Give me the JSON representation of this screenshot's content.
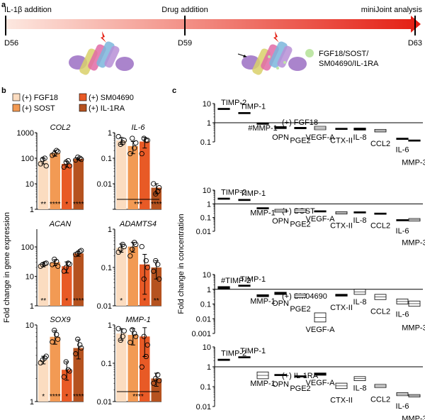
{
  "colors": {
    "fgf18": "#fbdcc0",
    "sost": "#f29a54",
    "sm04690": "#e85a26",
    "il1ra": "#b5521f",
    "timeline_start": "#fde8e0",
    "timeline_end": "#e41e12",
    "drug_dot": "#bfe6a6"
  },
  "timeline": {
    "panel_label": "a",
    "events": [
      {
        "top": "IL-1β addition",
        "bottom": "D56"
      },
      {
        "top": "Drug addition",
        "bottom": "D59"
      },
      {
        "top": "miniJoint analysis",
        "bottom": "D63"
      }
    ],
    "drug_label_lines": [
      "FGF18/SOST/",
      "SM04690/IL-1RA"
    ]
  },
  "panel_b": {
    "panel_label": "b",
    "legend": [
      "(+) FGF18",
      "(+) SOST",
      "(+) SM04690",
      "(+) IL-1RA"
    ],
    "ylabel": "Fold change in gene expression"
  },
  "panel_c": {
    "panel_label": "c",
    "ylabel": "Fold change in concentration"
  },
  "chart_data": [
    {
      "type": "bar",
      "title": "COL2",
      "categories": [
        "(+) FGF18",
        "(+) SOST",
        "(+) SM04690",
        "(+) IL-1RA"
      ],
      "values": [
        80,
        160,
        60,
        95
      ],
      "errors": [
        20,
        40,
        15,
        10
      ],
      "points": [
        [
          60,
          100,
          90,
          50
        ],
        [
          130,
          200,
          150,
          180
        ],
        [
          45,
          80,
          70,
          50
        ],
        [
          85,
          100,
          110,
          90
        ]
      ],
      "significance": [
        "**",
        "****",
        "*",
        "****"
      ],
      "ylim": [
        1,
        1000
      ],
      "log": true,
      "ticks": [
        1,
        10,
        100,
        1000
      ],
      "tick_labels": [
        "1",
        "10",
        "100",
        "1000"
      ]
    },
    {
      "type": "bar",
      "title": "IL-6",
      "categories": [
        "(+) FGF18",
        "(+) SOST",
        "(+) SM04690",
        "(+) IL-1RA"
      ],
      "values": [
        0.5,
        0.3,
        0.45,
        0.007
      ],
      "errors": [
        0.15,
        0.15,
        0.2,
        0.003
      ],
      "points": [
        [
          0.7,
          0.4,
          0.35,
          0.5
        ],
        [
          0.15,
          0.25,
          0.6,
          0.4
        ],
        [
          0.15,
          0.5,
          0.6,
          0.5
        ],
        [
          0.01,
          0.005,
          0.004,
          0.007
        ]
      ],
      "significance": [
        "",
        "",
        "",
        "****"
      ],
      "bracket": "***",
      "ylim": [
        0.001,
        1
      ],
      "log": true,
      "ticks": [
        0.001,
        0.01,
        0.1,
        1
      ],
      "tick_labels": [
        "",
        "0.01",
        "0.1",
        "1"
      ]
    },
    {
      "type": "bar",
      "title": "ACAN",
      "categories": [
        "(+) FGF18",
        "(+) SOST",
        "(+) SM04690",
        "(+) IL-1RA"
      ],
      "values": [
        25,
        30,
        22,
        60
      ],
      "errors": [
        4,
        7,
        9,
        12
      ],
      "points": [
        [
          22,
          27,
          25,
          28
        ],
        [
          25,
          32,
          38,
          22
        ],
        [
          15,
          28,
          20,
          26
        ],
        [
          55,
          70,
          60,
          75
        ]
      ],
      "significance": [
        "**",
        "",
        "*",
        "****"
      ],
      "ylim": [
        1,
        400
      ],
      "log": true,
      "ticks": [
        1,
        10,
        100
      ],
      "tick_labels": [
        "1",
        "10",
        "100"
      ]
    },
    {
      "type": "bar",
      "title": "ADAMTS4",
      "categories": [
        "(+) FGF18",
        "(+) SOST",
        "(+) SM04690",
        "(+) IL-1RA"
      ],
      "values": [
        0.33,
        0.35,
        0.12,
        0.1
      ],
      "errors": [
        0.08,
        0.1,
        0.1,
        0.05
      ],
      "points": [
        [
          0.25,
          0.4,
          0.3,
          0.35
        ],
        [
          0.2,
          0.45,
          0.3,
          0.4
        ],
        [
          0.35,
          0.15,
          0.05,
          0.1
        ],
        [
          0.08,
          0.12,
          0.15,
          0.05
        ]
      ],
      "significance": [
        "*",
        "",
        "*",
        "**"
      ],
      "ylim": [
        0.01,
        1
      ],
      "log": true,
      "ticks": [
        0.01,
        0.1,
        1
      ],
      "tick_labels": [
        "0.01",
        "0.1",
        "1"
      ]
    },
    {
      "type": "bar",
      "title": "SOX9",
      "categories": [
        "(+) FGF18",
        "(+) SOST",
        "(+) SM04690",
        "(+) IL-1RA"
      ],
      "values": [
        3.5,
        7,
        2.6,
        5
      ],
      "errors": [
        0.4,
        1.4,
        0.7,
        1.4
      ],
      "points": [
        [
          3.2,
          3.7,
          3.5,
          3.9
        ],
        [
          6,
          7.5,
          8.5,
          6.5
        ],
        [
          2.1,
          2.6,
          3.3,
          2.5
        ],
        [
          4.2,
          5.5,
          6.5,
          5
        ]
      ],
      "significance": [
        "*",
        "****",
        "*",
        "****"
      ],
      "ylim": [
        1,
        10
      ],
      "log": true,
      "ticks": [
        1,
        10
      ],
      "tick_labels": [
        "1",
        "10"
      ]
    },
    {
      "type": "bar",
      "title": "MMP-1",
      "categories": [
        "(+) FGF18",
        "(+) SOST",
        "(+) SM04690",
        "(+) IL-1RA"
      ],
      "values": [
        0.6,
        0.55,
        0.5,
        0.04
      ],
      "errors": [
        0.2,
        0.25,
        0.35,
        0.015
      ],
      "points": [
        [
          0.8,
          0.5,
          0.4,
          0.7
        ],
        [
          0.35,
          0.6,
          0.75,
          0.5
        ],
        [
          0.08,
          0.15,
          0.5,
          0.3
        ],
        [
          0.03,
          0.05,
          0.04,
          0.035
        ]
      ],
      "significance": [
        "",
        "",
        "",
        ""
      ],
      "bracket": "****",
      "ylim": [
        0.01,
        1
      ],
      "log": true,
      "ticks": [
        0.01,
        0.1,
        1
      ],
      "tick_labels": [
        "0.01",
        "0.1",
        "1"
      ]
    },
    {
      "type": "box",
      "title": "(+) FGF18",
      "categories": [
        "TIMP-2",
        "TIMP-1",
        "MMP-1",
        "OPN",
        "PGE2",
        "VEGF-A",
        "CTX-II",
        "IL-8",
        "CCL2",
        "IL-6",
        "MMP-3"
      ],
      "category_display": [
        "TIMP-2",
        "TIMP-1",
        "#MMP-1",
        "OPN",
        "PGE2",
        "VEGF-A",
        "CTX-II",
        "IL-8",
        "CCL2",
        "IL-6",
        "MMP-3"
      ],
      "low": [
        5.2,
        3.1,
        0.9,
        0.5,
        0.49,
        0.43,
        0.49,
        0.42,
        0.33,
        0.135,
        0.115
      ],
      "high": [
        5.6,
        3.4,
        0.95,
        0.62,
        0.57,
        0.65,
        0.51,
        0.52,
        0.45,
        0.155,
        0.125
      ],
      "ylim": [
        0.1,
        10
      ],
      "log": true,
      "ticks": [
        0.1,
        1,
        10
      ],
      "tick_labels": [
        "0.1",
        "1",
        "10"
      ]
    },
    {
      "type": "box",
      "title": "(+) SOST",
      "categories": [
        "TIMP-2",
        "TIMP-1",
        "MMP-1",
        "OPN",
        "PGE2",
        "VEGF-A",
        "CTX-II",
        "IL-8",
        "CCL2",
        "IL-6",
        "MMP-3"
      ],
      "category_display": [
        "TIMP-2",
        "TIMP-1",
        "MMP-1",
        "OPN",
        "PGE2",
        "VEGF-A",
        "CTX-II",
        "IL-8",
        "CCL2",
        "IL-6",
        "MMP-3"
      ],
      "low": [
        2.3,
        1.8,
        0.48,
        0.25,
        0.24,
        0.28,
        0.18,
        0.22,
        0.19,
        0.06,
        0.055
      ],
      "high": [
        2.6,
        2.1,
        0.52,
        0.4,
        0.42,
        0.31,
        0.27,
        0.26,
        0.21,
        0.07,
        0.085
      ],
      "ylim": [
        0.01,
        10
      ],
      "log": true,
      "ticks": [
        0.01,
        0.1,
        1,
        10
      ],
      "tick_labels": [
        "0.01",
        "0.1",
        "1",
        "10"
      ]
    },
    {
      "type": "box",
      "title": "(+) SM04690",
      "categories": [
        "TIMP-2",
        "TIMP-1",
        "MMP-1",
        "OPN",
        "PGE2",
        "VEGF-A",
        "CTX-II",
        "IL-8",
        "CCL2",
        "IL-6",
        "MMP-3"
      ],
      "category_display": [
        "#TIMP-2",
        "TIMP-1",
        "MMP-1",
        "OPN",
        "PGE2",
        "VEGF-A",
        "CTX-II",
        "IL-8",
        "CCL2",
        "IL-6",
        "MMP-3"
      ],
      "low": [
        1.1,
        1.6,
        0.32,
        0.45,
        0.28,
        0.006,
        0.35,
        0.45,
        0.2,
        0.1,
        0.07
      ],
      "high": [
        1.5,
        1.9,
        0.42,
        0.62,
        0.48,
        0.025,
        0.45,
        1.0,
        0.45,
        0.22,
        0.16
      ],
      "ylim": [
        0.001,
        10
      ],
      "log": true,
      "ticks": [
        0.001,
        0.01,
        0.1,
        1,
        10
      ],
      "tick_labels": [
        "0.001",
        "0.01",
        "0.1",
        "1",
        "10"
      ]
    },
    {
      "type": "box",
      "title": "(+) IL-1RA",
      "categories": [
        "TIMP-2",
        "TIMP-1",
        "MMP-1",
        "OPN",
        "PGE2",
        "VEGF-A",
        "CTX-II",
        "IL-8",
        "CCL2",
        "IL-6",
        "MMP-3"
      ],
      "category_display": [
        "TIMP-2",
        "TIMP-1",
        "MMP-1",
        "OPN",
        "PGE2",
        "VEGF-A",
        "CTX-II",
        "IL-8",
        "CCL2",
        "IL-6",
        "MMP-3"
      ],
      "low": [
        2.1,
        2.9,
        0.25,
        0.38,
        0.32,
        0.38,
        0.08,
        0.2,
        0.09,
        0.035,
        0.03
      ],
      "high": [
        2.4,
        3.2,
        0.55,
        0.41,
        0.35,
        0.48,
        0.15,
        0.32,
        0.13,
        0.05,
        0.04
      ],
      "ylim": [
        0.01,
        10
      ],
      "log": true,
      "ticks": [
        0.01,
        0.1,
        1,
        10
      ],
      "tick_labels": [
        "0.01",
        "0.1",
        "1",
        "10"
      ]
    }
  ]
}
